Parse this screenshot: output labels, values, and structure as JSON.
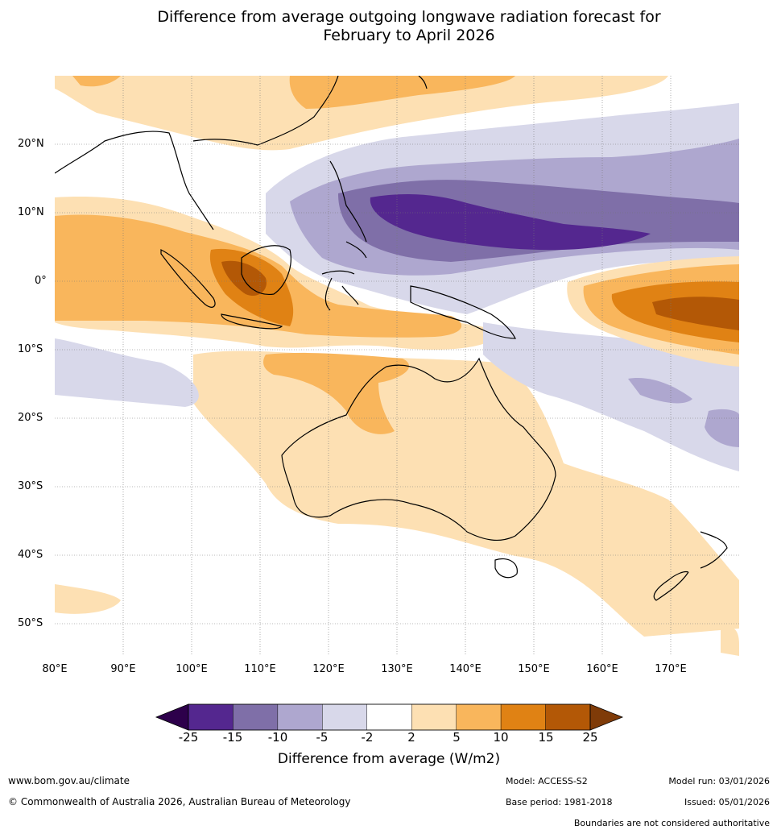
{
  "title_line1": "Difference from average outgoing longwave radiation forecast for",
  "title_line2": "February to April 2026",
  "lat_labels": [
    "20°N",
    "10°N",
    "0°",
    "10°S",
    "20°S",
    "30°S",
    "40°S",
    "50°S"
  ],
  "lon_labels": [
    "80°E",
    "90°E",
    "100°E",
    "110°E",
    "120°E",
    "130°E",
    "140°E",
    "150°E",
    "160°E",
    "170°E"
  ],
  "colorbar": {
    "label": "Difference from average (W/m2)",
    "ticks": [
      "-25",
      "-15",
      "-10",
      "-5",
      "-2",
      "2",
      "5",
      "10",
      "15",
      "25"
    ],
    "colors": [
      "#54278f",
      "#7f6fa8",
      "#aea7cf",
      "#d8d8ea",
      "#ffffff",
      "#fde0b3",
      "#f9b65c",
      "#e08214",
      "#b35806"
    ],
    "low_extend_color": "#2d004b",
    "high_extend_color": "#7f3b08"
  },
  "footer": {
    "website": "www.bom.gov.au/climate",
    "copyright": "© Commonwealth of Australia 2026, Australian Bureau of Meteorology",
    "model": "Model: ACCESS-S2",
    "base_period": "Base period: 1981-2018",
    "model_run": "Model run: 03/01/2026",
    "issued": "Issued: 05/01/2026",
    "disclaimer": "Boundaries are not considered authoritative"
  }
}
